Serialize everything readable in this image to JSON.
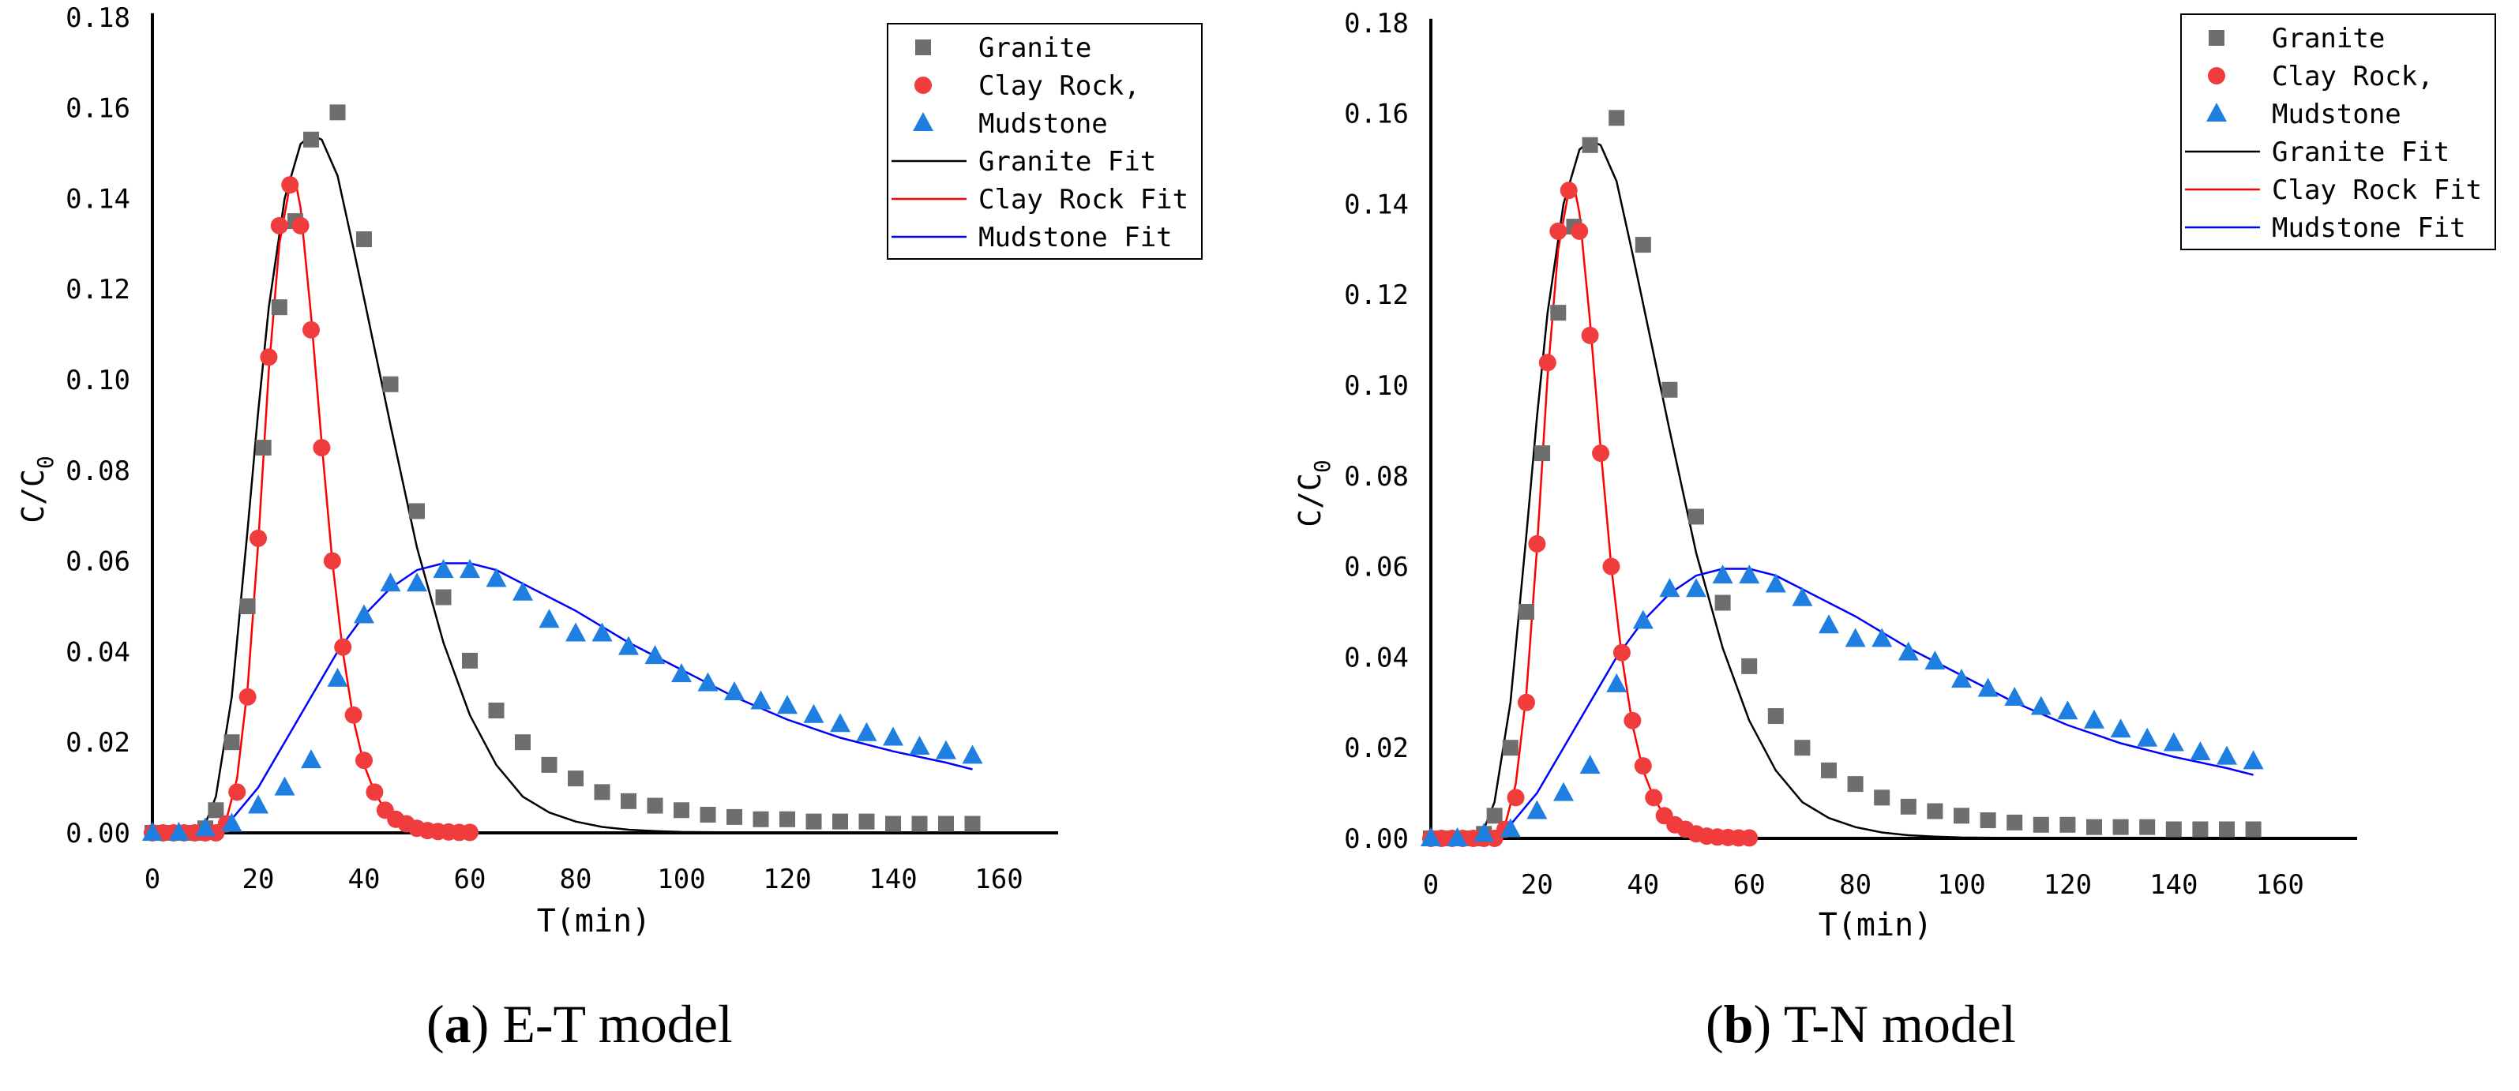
{
  "figure": {
    "caption_a": {
      "letter": "a",
      "text": " E-T model"
    },
    "caption_b": {
      "letter": "b",
      "text": " T-N model"
    }
  },
  "colors": {
    "granite": "#6e6e6e",
    "clay": "#f03c3c",
    "mudstone": "#1f7fe0",
    "granite_fit": "#000000",
    "clay_fit": "#ff0000",
    "mudstone_fit": "#0000ff",
    "axis": "#000000"
  },
  "chart_data": [
    {
      "type": "scatter",
      "ylabel_main": "C/C",
      "ylabel_sub": "0",
      "xlabel": "T(min)",
      "xlim": [
        0,
        170
      ],
      "ylim": [
        0,
        0.18
      ],
      "xticks": [
        0,
        20,
        40,
        60,
        80,
        100,
        120,
        140,
        160
      ],
      "yticks": [
        "0.00",
        "0.02",
        "0.04",
        "0.06",
        "0.08",
        "0.10",
        "0.12",
        "0.14",
        "0.16",
        "0.18"
      ],
      "legend_position": "top-right",
      "series": [
        {
          "name": "Granite",
          "kind": "points",
          "marker": "square",
          "color": "#6e6e6e",
          "x": [
            0,
            2,
            4,
            6,
            8,
            10,
            12,
            15,
            18,
            21,
            24,
            27,
            30,
            35,
            40,
            45,
            50,
            55,
            60,
            65,
            70,
            75,
            80,
            85,
            90,
            95,
            100,
            105,
            110,
            115,
            120,
            125,
            130,
            135,
            140,
            145,
            150,
            155
          ],
          "y": [
            0,
            0,
            0,
            0,
            0,
            0.001,
            0.005,
            0.02,
            0.05,
            0.085,
            0.116,
            0.135,
            0.153,
            0.159,
            0.131,
            0.099,
            0.071,
            0.052,
            0.038,
            0.027,
            0.02,
            0.015,
            0.012,
            0.009,
            0.007,
            0.006,
            0.005,
            0.004,
            0.0035,
            0.003,
            0.003,
            0.0025,
            0.0025,
            0.0025,
            0.002,
            0.002,
            0.002,
            0.002
          ]
        },
        {
          "name": "Clay Rock,",
          "kind": "points",
          "marker": "circle",
          "color": "#f03c3c",
          "x": [
            0,
            2,
            4,
            6,
            8,
            10,
            12,
            14,
            16,
            18,
            20,
            22,
            24,
            26,
            28,
            30,
            32,
            34,
            36,
            38,
            40,
            42,
            44,
            46,
            48,
            50,
            52,
            54,
            56,
            58,
            60
          ],
          "y": [
            0,
            0,
            0,
            0,
            0,
            0,
            0,
            0.002,
            0.009,
            0.03,
            0.065,
            0.105,
            0.134,
            0.143,
            0.134,
            0.111,
            0.085,
            0.06,
            0.041,
            0.026,
            0.016,
            0.009,
            0.005,
            0.003,
            0.002,
            0.001,
            0.0005,
            0.0003,
            0.0002,
            0.0001,
            0.0001
          ]
        },
        {
          "name": "Mudstone",
          "kind": "points",
          "marker": "triangle",
          "color": "#1f7fe0",
          "x": [
            0,
            5,
            10,
            15,
            20,
            25,
            30,
            35,
            40,
            45,
            50,
            55,
            60,
            65,
            70,
            75,
            80,
            85,
            90,
            95,
            100,
            105,
            110,
            115,
            120,
            125,
            130,
            135,
            140,
            145,
            150,
            155
          ],
          "y": [
            0,
            0,
            0.001,
            0.002,
            0.006,
            0.01,
            0.016,
            0.034,
            0.048,
            0.055,
            0.055,
            0.058,
            0.058,
            0.056,
            0.053,
            0.047,
            0.044,
            0.044,
            0.041,
            0.039,
            0.035,
            0.033,
            0.031,
            0.029,
            0.028,
            0.026,
            0.024,
            0.022,
            0.021,
            0.019,
            0.018,
            0.017
          ]
        },
        {
          "name": "Granite Fit",
          "kind": "line",
          "color": "#000000",
          "x": [
            0,
            5,
            8,
            10,
            12,
            15,
            18,
            20,
            22,
            25,
            28,
            30,
            32,
            35,
            38,
            40,
            45,
            50,
            55,
            60,
            65,
            70,
            75,
            80,
            85,
            90,
            95,
            100,
            110,
            120,
            130,
            140,
            150,
            155
          ],
          "y": [
            0,
            0,
            0.0005,
            0.002,
            0.008,
            0.03,
            0.067,
            0.093,
            0.116,
            0.14,
            0.152,
            0.154,
            0.153,
            0.145,
            0.129,
            0.118,
            0.09,
            0.063,
            0.042,
            0.026,
            0.015,
            0.008,
            0.0045,
            0.0025,
            0.0013,
            0.0007,
            0.0004,
            0.0002,
            0.0001,
            0,
            0,
            0,
            0,
            0
          ]
        },
        {
          "name": "Clay Rock Fit",
          "kind": "line",
          "color": "#ff0000",
          "x": [
            0,
            10,
            12,
            14,
            16,
            18,
            20,
            22,
            24,
            26,
            27,
            28,
            30,
            32,
            34,
            36,
            38,
            40,
            42,
            44,
            46,
            48,
            50,
            52,
            55,
            58,
            60
          ],
          "y": [
            0,
            0,
            0.0005,
            0.003,
            0.012,
            0.032,
            0.064,
            0.102,
            0.13,
            0.143,
            0.144,
            0.138,
            0.114,
            0.086,
            0.06,
            0.04,
            0.025,
            0.015,
            0.009,
            0.005,
            0.003,
            0.0015,
            0.0008,
            0.0004,
            0.0002,
            0.0001,
            0.0001
          ]
        },
        {
          "name": "Mudstone Fit",
          "kind": "line",
          "color": "#0000ff",
          "x": [
            0,
            5,
            10,
            15,
            20,
            25,
            30,
            35,
            40,
            45,
            50,
            55,
            60,
            65,
            70,
            80,
            90,
            100,
            110,
            120,
            130,
            140,
            150,
            155
          ],
          "y": [
            0,
            0,
            0.0005,
            0.003,
            0.01,
            0.02,
            0.03,
            0.04,
            0.048,
            0.054,
            0.058,
            0.0595,
            0.0595,
            0.058,
            0.055,
            0.049,
            0.042,
            0.036,
            0.03,
            0.025,
            0.021,
            0.018,
            0.0155,
            0.014
          ]
        }
      ]
    },
    {
      "type": "scatter",
      "ylabel_main": "C/C",
      "ylabel_sub": "0",
      "xlabel": "T(min)",
      "xlim": [
        0,
        170
      ],
      "ylim": [
        0,
        0.18
      ],
      "xticks": [
        0,
        20,
        40,
        60,
        80,
        100,
        120,
        140,
        160
      ],
      "yticks": [
        "0.00",
        "0.02",
        "0.04",
        "0.06",
        "0.08",
        "0.10",
        "0.12",
        "0.14",
        "0.16",
        "0.18"
      ],
      "legend_position": "top-right",
      "series": [
        {
          "name": "Granite",
          "kind": "points",
          "marker": "square",
          "color": "#6e6e6e",
          "x": [
            0,
            2,
            4,
            6,
            8,
            10,
            12,
            15,
            18,
            21,
            24,
            27,
            30,
            35,
            40,
            45,
            50,
            55,
            60,
            65,
            70,
            75,
            80,
            85,
            90,
            95,
            100,
            105,
            110,
            115,
            120,
            125,
            130,
            135,
            140,
            145,
            150,
            155
          ],
          "y": [
            0,
            0,
            0,
            0,
            0,
            0.001,
            0.005,
            0.02,
            0.05,
            0.085,
            0.116,
            0.135,
            0.153,
            0.159,
            0.131,
            0.099,
            0.071,
            0.052,
            0.038,
            0.027,
            0.02,
            0.015,
            0.012,
            0.009,
            0.007,
            0.006,
            0.005,
            0.004,
            0.0035,
            0.003,
            0.003,
            0.0025,
            0.0025,
            0.0025,
            0.002,
            0.002,
            0.002,
            0.002
          ]
        },
        {
          "name": "Clay Rock,",
          "kind": "points",
          "marker": "circle",
          "color": "#f03c3c",
          "x": [
            0,
            2,
            4,
            6,
            8,
            10,
            12,
            14,
            16,
            18,
            20,
            22,
            24,
            26,
            28,
            30,
            32,
            34,
            36,
            38,
            40,
            42,
            44,
            46,
            48,
            50,
            52,
            54,
            56,
            58,
            60
          ],
          "y": [
            0,
            0,
            0,
            0,
            0,
            0,
            0,
            0.002,
            0.009,
            0.03,
            0.065,
            0.105,
            0.134,
            0.143,
            0.134,
            0.111,
            0.085,
            0.06,
            0.041,
            0.026,
            0.016,
            0.009,
            0.005,
            0.003,
            0.002,
            0.001,
            0.0005,
            0.0003,
            0.0002,
            0.0001,
            0.0001
          ]
        },
        {
          "name": "Mudstone",
          "kind": "points",
          "marker": "triangle",
          "color": "#1f7fe0",
          "x": [
            0,
            5,
            10,
            15,
            20,
            25,
            30,
            35,
            40,
            45,
            50,
            55,
            60,
            65,
            70,
            75,
            80,
            85,
            90,
            95,
            100,
            105,
            110,
            115,
            120,
            125,
            130,
            135,
            140,
            145,
            150,
            155
          ],
          "y": [
            0,
            0,
            0.001,
            0.002,
            0.006,
            0.01,
            0.016,
            0.034,
            0.048,
            0.055,
            0.055,
            0.058,
            0.058,
            0.056,
            0.053,
            0.047,
            0.044,
            0.044,
            0.041,
            0.039,
            0.035,
            0.033,
            0.031,
            0.029,
            0.028,
            0.026,
            0.024,
            0.022,
            0.021,
            0.019,
            0.018,
            0.017
          ]
        },
        {
          "name": "Granite Fit",
          "kind": "line",
          "color": "#000000",
          "x": [
            0,
            5,
            8,
            10,
            12,
            15,
            18,
            20,
            22,
            25,
            28,
            30,
            32,
            35,
            38,
            40,
            45,
            50,
            55,
            60,
            65,
            70,
            75,
            80,
            85,
            90,
            95,
            100,
            110,
            120,
            130,
            140,
            150,
            155
          ],
          "y": [
            0,
            0,
            0.0005,
            0.002,
            0.008,
            0.03,
            0.067,
            0.093,
            0.116,
            0.14,
            0.152,
            0.154,
            0.153,
            0.145,
            0.129,
            0.118,
            0.09,
            0.063,
            0.042,
            0.026,
            0.015,
            0.008,
            0.0045,
            0.0025,
            0.0013,
            0.0007,
            0.0004,
            0.0002,
            0.0001,
            0,
            0,
            0,
            0,
            0
          ]
        },
        {
          "name": "Clay Rock Fit",
          "kind": "line",
          "color": "#ff0000",
          "x": [
            0,
            10,
            12,
            14,
            16,
            18,
            20,
            22,
            24,
            26,
            27,
            28,
            30,
            32,
            34,
            36,
            38,
            40,
            42,
            44,
            46,
            48,
            50,
            52,
            55,
            58,
            60
          ],
          "y": [
            0,
            0,
            0.0005,
            0.003,
            0.012,
            0.032,
            0.064,
            0.102,
            0.13,
            0.143,
            0.144,
            0.138,
            0.114,
            0.086,
            0.06,
            0.04,
            0.025,
            0.015,
            0.009,
            0.005,
            0.003,
            0.0015,
            0.0008,
            0.0004,
            0.0002,
            0.0001,
            0.0001
          ]
        },
        {
          "name": "Mudstone Fit",
          "kind": "line",
          "color": "#0000ff",
          "x": [
            0,
            5,
            10,
            15,
            20,
            25,
            30,
            35,
            40,
            45,
            50,
            55,
            60,
            65,
            70,
            80,
            90,
            100,
            110,
            120,
            130,
            140,
            150,
            155
          ],
          "y": [
            0,
            0,
            0.0005,
            0.003,
            0.01,
            0.02,
            0.03,
            0.04,
            0.048,
            0.054,
            0.058,
            0.0595,
            0.0595,
            0.058,
            0.055,
            0.049,
            0.042,
            0.036,
            0.03,
            0.025,
            0.021,
            0.018,
            0.0155,
            0.014
          ]
        }
      ]
    }
  ]
}
